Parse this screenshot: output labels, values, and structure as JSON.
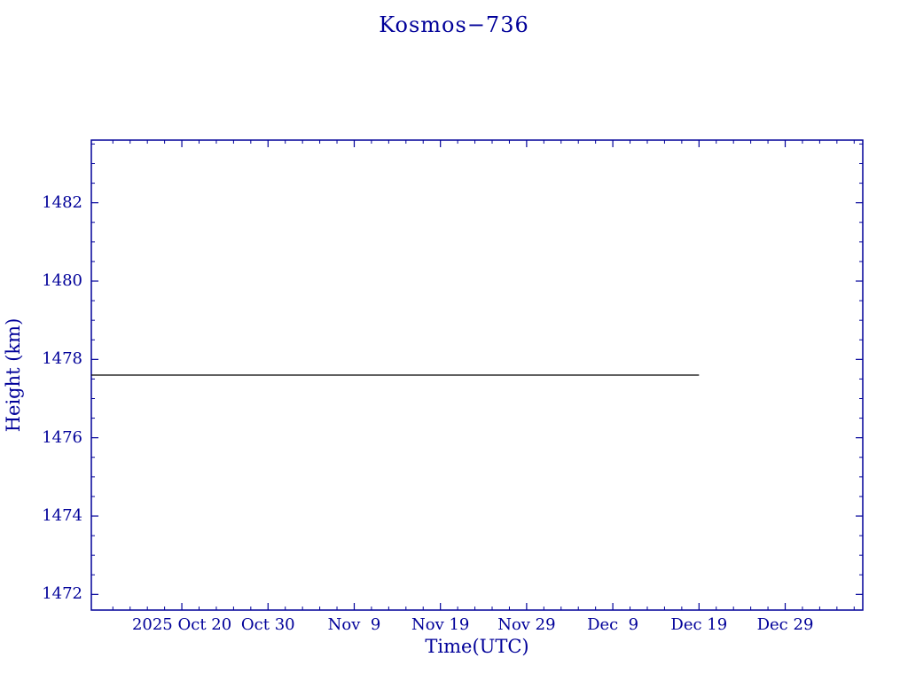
{
  "chart_data": {
    "type": "line",
    "title": "Kosmos−736",
    "xlabel": "Time(UTC)",
    "ylabel": "Height (km)",
    "axis_color": "#000099",
    "background_color": "#ffffff",
    "grid": false,
    "legend": false,
    "x_axis": {
      "unit": "days relative to 2025 Oct 20 (UTC)",
      "min": -10.5,
      "max": 79,
      "major_step": 10,
      "minor_tick_step": 2,
      "major_ticks": [
        {
          "pos": 0,
          "label": "2025 Oct 20"
        },
        {
          "pos": 10,
          "label": "Oct 30"
        },
        {
          "pos": 20,
          "label": "Nov  9"
        },
        {
          "pos": 30,
          "label": "Nov 19"
        },
        {
          "pos": 40,
          "label": "Nov 29"
        },
        {
          "pos": 50,
          "label": "Dec  9"
        },
        {
          "pos": 60,
          "label": "Dec 19"
        },
        {
          "pos": 70,
          "label": "Dec 29"
        }
      ]
    },
    "y_axis": {
      "unit": "km",
      "min": 1471.6,
      "max": 1483.6,
      "major_step": 2,
      "minor_tick_step": 0.5,
      "major_ticks": [
        {
          "pos": 1472,
          "label": "1472"
        },
        {
          "pos": 1474,
          "label": "1474"
        },
        {
          "pos": 1476,
          "label": "1476"
        },
        {
          "pos": 1478,
          "label": "1478"
        },
        {
          "pos": 1480,
          "label": "1480"
        },
        {
          "pos": 1482,
          "label": "1482"
        }
      ]
    },
    "series": [
      {
        "name": "orbit-height",
        "color": "#000000",
        "x": [
          -10.5,
          60
        ],
        "y": [
          1477.6,
          1477.6
        ]
      }
    ]
  }
}
